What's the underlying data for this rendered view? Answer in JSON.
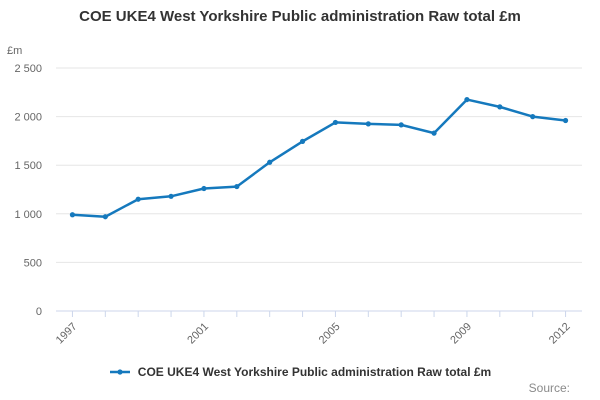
{
  "chart": {
    "title": "COE UKE4 West Yorkshire Public administration Raw total £m",
    "y_unit_label": "£m",
    "legend_label": "COE UKE4 West Yorkshire Public administration Raw total £m",
    "source_label": "Source:",
    "line_color": "#1579bd",
    "grid_color": "#e6e6e6",
    "axis_color": "#ccd6eb",
    "tick_label_color": "#666666"
  },
  "chart_data": {
    "type": "line",
    "title": "COE UKE4 West Yorkshire Public administration Raw total £m",
    "xlabel": "",
    "ylabel": "£m",
    "categories": [
      "1997",
      "1998",
      "1999",
      "2000",
      "2001",
      "2002",
      "2003",
      "2004",
      "2005",
      "2006",
      "2007",
      "2008",
      "2009",
      "2010",
      "2011",
      "2012"
    ],
    "values": [
      990,
      970,
      1150,
      1180,
      1260,
      1280,
      1530,
      1745,
      1940,
      1925,
      1915,
      1830,
      2175,
      2100,
      2000,
      1960
    ],
    "ylim": [
      0,
      2500
    ],
    "y_ticks": [
      {
        "value": 0,
        "label": "0"
      },
      {
        "value": 500,
        "label": "500"
      },
      {
        "value": 1000,
        "label": "1 000"
      },
      {
        "value": 1500,
        "label": "1 500"
      },
      {
        "value": 2000,
        "label": "2 000"
      },
      {
        "value": 2500,
        "label": "2 500"
      }
    ],
    "x_ticks": [
      {
        "index": 0,
        "label": "1997"
      },
      {
        "index": 4,
        "label": "2001"
      },
      {
        "index": 8,
        "label": "2005"
      },
      {
        "index": 12,
        "label": "2009"
      },
      {
        "index": 15,
        "label": "2012"
      }
    ],
    "grid": true,
    "legend_position": "bottom",
    "marker": "circle"
  }
}
